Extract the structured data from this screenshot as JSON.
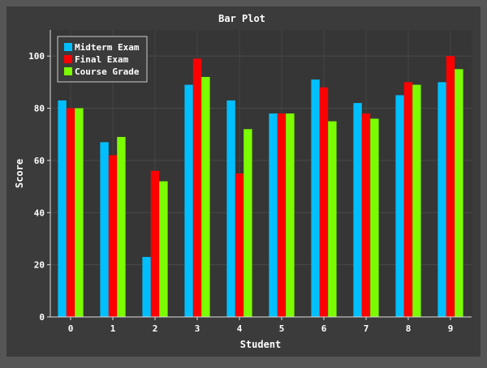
{
  "chart_data": {
    "type": "bar",
    "title": "Bar Plot",
    "xlabel": "Student",
    "ylabel": "Score",
    "categories": [
      "0",
      "1",
      "2",
      "3",
      "4",
      "5",
      "6",
      "7",
      "8",
      "9"
    ],
    "ylim": [
      0,
      110
    ],
    "yticks": [
      0,
      20,
      40,
      60,
      80,
      100
    ],
    "grid": true,
    "legend_position": "top-left",
    "series": [
      {
        "name": "Midterm Exam",
        "color": "#00bfff",
        "values": [
          83,
          67,
          23,
          89,
          83,
          78,
          91,
          82,
          85,
          90
        ]
      },
      {
        "name": "Final Exam",
        "color": "#ff0000",
        "values": [
          80,
          62,
          56,
          99,
          55,
          78,
          88,
          78,
          90,
          100
        ]
      },
      {
        "name": "Course Grade",
        "color": "#7cfc00",
        "values": [
          80,
          69,
          52,
          92,
          72,
          78,
          75,
          76,
          89,
          95
        ]
      }
    ]
  }
}
